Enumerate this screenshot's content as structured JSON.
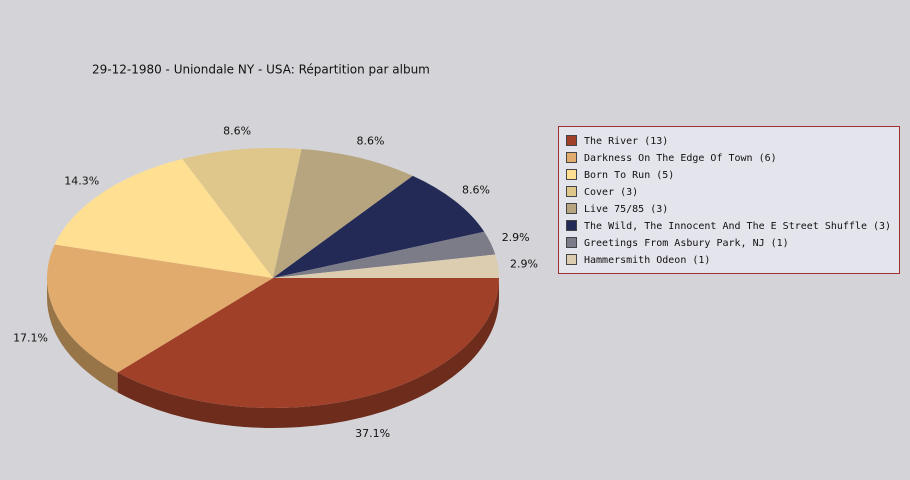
{
  "chart_data": {
    "type": "pie",
    "title": "29-12-1980 - Uniondale NY - USA:  Répartition par album",
    "categories": [
      "The River (13)",
      "Darkness On The Edge Of Town (6)",
      "Born To Run (5)",
      "Cover (3)",
      "Live 75/85 (3)",
      "The Wild, The Innocent And The E Street Shuffle (3)",
      "Greetings From Asbury Park, NJ (1)",
      "Hammersmith Odeon  (1)"
    ],
    "values": [
      37.1,
      17.1,
      14.3,
      8.6,
      8.6,
      8.6,
      2.9,
      2.9
    ],
    "value_labels": [
      "37.1%",
      "17.1%",
      "14.3%",
      "8.6%",
      "8.6%",
      "8.6%",
      "2.9%",
      "2.9%"
    ],
    "colors": [
      "#a14029",
      "#e0ab6c",
      "#ffe092",
      "#dfc68a",
      "#b7a57f",
      "#222a55",
      "#7c7b88",
      "#dccdb0"
    ],
    "legend": "right"
  }
}
